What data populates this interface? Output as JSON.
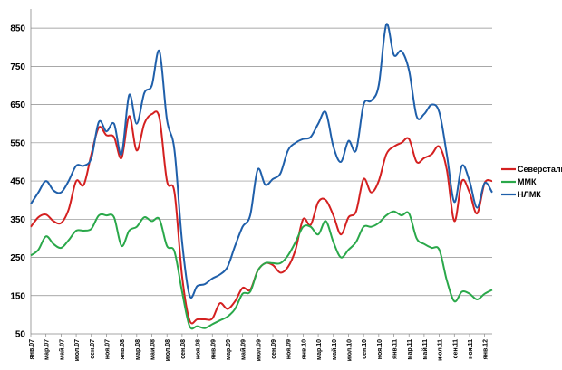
{
  "chart_data": {
    "type": "line",
    "title": "",
    "xlabel": "",
    "ylabel": "",
    "ylim": [
      50,
      900
    ],
    "yticks": [
      50,
      150,
      250,
      350,
      450,
      550,
      650,
      750,
      850
    ],
    "grid": true,
    "legend_position": "right",
    "categories": [
      "янв.07",
      "фев.07",
      "мар.07",
      "апр.07",
      "май.07",
      "июн.07",
      "июл.07",
      "авг.07",
      "сен.07",
      "окт.07",
      "ноя.07",
      "дек.07",
      "янв.08",
      "фев.08",
      "мар.08",
      "апр.08",
      "май.08",
      "июн.08",
      "июл.08",
      "авг.08",
      "сен.08",
      "окт.08",
      "ноя.08",
      "дек.08",
      "янв.09",
      "фев.09",
      "мар.09",
      "апр.09",
      "май.09",
      "июн.09",
      "июл.09",
      "авг.09",
      "сен.09",
      "окт.09",
      "ноя.09",
      "дек.09",
      "янв.10",
      "фев.10",
      "мар.10",
      "апр.10",
      "май.10",
      "июн.10",
      "июл.10",
      "авг.10",
      "сен.10",
      "окт.10",
      "ноя.10",
      "дек.10",
      "янв.11",
      "фев.11",
      "мар.11",
      "апр.11",
      "май.11",
      "июн.11",
      "июл.11",
      "авг.11",
      "сен.11",
      "окт.11",
      "ноя.11",
      "дек.11",
      "янв.12",
      "фев.12"
    ],
    "xtick_labels": [
      "янв.07",
      "мар.07",
      "май.07",
      "июл.07",
      "сен.07",
      "ноя.07",
      "янв.08",
      "мар.08",
      "май.08",
      "июл.08",
      "сен.08",
      "ноя.08",
      "янв.09",
      "мар.09",
      "май.09",
      "июл.09",
      "сен.09",
      "ноя.09",
      "янв.10",
      "мар.10",
      "май.10",
      "июл.10",
      "сен.10",
      "ноя.10",
      "янв.11",
      "мар.11",
      "май.11",
      "июл.11",
      "сен.11",
      "ноя.11",
      "янв.12"
    ],
    "series": [
      {
        "name": "Северсталь",
        "color": "#d42020",
        "values": [
          330,
          355,
          362,
          345,
          340,
          375,
          450,
          440,
          520,
          590,
          570,
          565,
          510,
          620,
          530,
          600,
          625,
          615,
          450,
          420,
          200,
          85,
          88,
          88,
          90,
          130,
          115,
          135,
          170,
          165,
          215,
          235,
          230,
          210,
          225,
          270,
          350,
          335,
          395,
          400,
          360,
          310,
          355,
          370,
          455,
          420,
          450,
          520,
          540,
          550,
          560,
          500,
          510,
          520,
          540,
          480,
          345,
          450,
          420,
          365,
          445,
          450
        ]
      },
      {
        "name": "ММК",
        "color": "#2aa84a",
        "values": [
          255,
          270,
          305,
          285,
          275,
          295,
          320,
          320,
          325,
          360,
          360,
          355,
          280,
          320,
          330,
          355,
          345,
          350,
          280,
          265,
          160,
          70,
          70,
          65,
          75,
          85,
          95,
          115,
          155,
          160,
          215,
          235,
          235,
          235,
          255,
          290,
          330,
          330,
          310,
          345,
          290,
          250,
          270,
          290,
          330,
          330,
          340,
          360,
          370,
          360,
          365,
          300,
          285,
          275,
          270,
          190,
          135,
          160,
          155,
          140,
          155,
          165
        ]
      },
      {
        "name": "НЛМК",
        "color": "#1f5faa",
        "values": [
          390,
          420,
          450,
          425,
          420,
          450,
          490,
          490,
          510,
          605,
          580,
          600,
          520,
          675,
          600,
          680,
          700,
          790,
          610,
          530,
          290,
          150,
          175,
          180,
          195,
          205,
          225,
          280,
          330,
          360,
          480,
          440,
          455,
          470,
          530,
          550,
          560,
          565,
          600,
          630,
          540,
          500,
          555,
          530,
          650,
          660,
          700,
          860,
          780,
          790,
          740,
          620,
          625,
          650,
          630,
          520,
          395,
          490,
          450,
          380,
          445,
          420
        ]
      }
    ]
  }
}
